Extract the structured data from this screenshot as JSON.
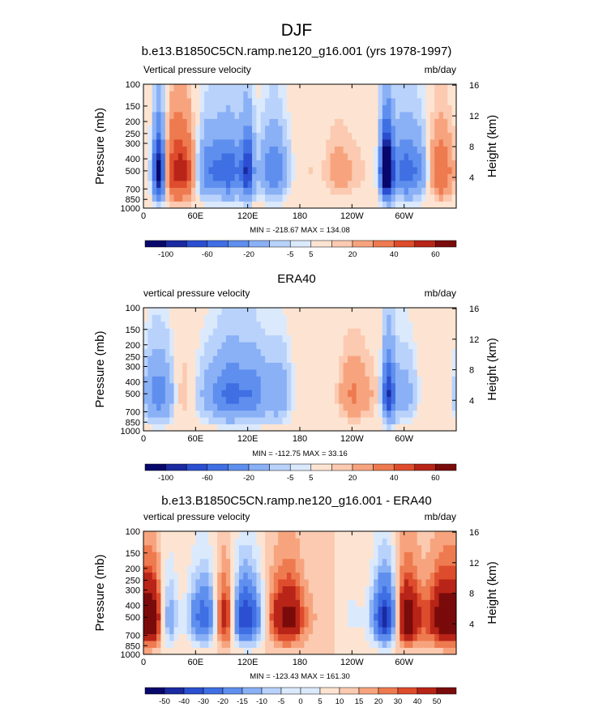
{
  "figure": {
    "season": "DJF",
    "colors": [
      "#08076b",
      "#1a2aa0",
      "#2b4fd0",
      "#3f6fe3",
      "#5f8fee",
      "#8ab0f6",
      "#b8d2fb",
      "#dbe9fd",
      "#fde4d2",
      "#fbcab0",
      "#f7a47e",
      "#ee7a50",
      "#dd4c2c",
      "#b82417",
      "#7a0b0b"
    ]
  },
  "panels": [
    {
      "title": "b.e13.B1850C5CN.ramp.ne120_g16.001 (yrs 1978-1997)",
      "variable": "Vertical pressure velocity",
      "units": "mb/day",
      "ylabel": "Pressure (mb)",
      "y2label": "Height (km)",
      "pressure_ticks": [
        "100",
        "150",
        "200",
        "250",
        "300",
        "400",
        "500",
        "700",
        "850",
        "1000"
      ],
      "height_ticks": [
        "16",
        "12",
        "8",
        "4"
      ],
      "lon_ticks": [
        "0",
        "60E",
        "120E",
        "180",
        "120W",
        "60W"
      ],
      "stats": "MIN = -218.67  MAX = 134.08",
      "colorbar_labels": [
        "-100",
        "-60",
        "-20",
        "-5",
        "5",
        "20",
        "40",
        "60"
      ],
      "chart_data": {
        "type": "heatmap",
        "x_unit": "longitude (deg E)",
        "xlim": [
          0,
          360
        ],
        "y_unit": "pressure (mb)",
        "ylim": [
          1000,
          100
        ],
        "contour_levels": [
          -120,
          -100,
          -80,
          -60,
          -40,
          -20,
          -10,
          -5,
          5,
          10,
          20,
          40,
          60,
          80
        ],
        "min": -218.67,
        "max": 134.08,
        "features": [
          {
            "lon": 18,
            "amp": -150
          },
          {
            "lon": 30,
            "amp": 25
          },
          {
            "lon": 45,
            "amp": 60
          },
          {
            "lon": 75,
            "amp": -55
          },
          {
            "lon": 100,
            "amp": -70
          },
          {
            "lon": 120,
            "amp": -95
          },
          {
            "lon": 150,
            "amp": -60
          },
          {
            "lon": 190,
            "amp": 5
          },
          {
            "lon": 225,
            "amp": 15
          },
          {
            "lon": 250,
            "amp": 5
          },
          {
            "lon": 280,
            "amp": -180
          },
          {
            "lon": 300,
            "amp": -60
          },
          {
            "lon": 318,
            "amp": -35
          },
          {
            "lon": 340,
            "amp": 40
          }
        ]
      }
    },
    {
      "title": "ERA40",
      "variable": "vertical pressure velocity",
      "units": "mb/day",
      "ylabel": "Pressure (mb)",
      "y2label": "Height (km)",
      "pressure_ticks": [
        "100",
        "150",
        "200",
        "250",
        "300",
        "400",
        "500",
        "700",
        "850",
        "1000"
      ],
      "height_ticks": [
        "16",
        "12",
        "8",
        "4"
      ],
      "lon_ticks": [
        "0",
        "60E",
        "120E",
        "180",
        "120W",
        "60W"
      ],
      "stats": "MIN = -112.75  MAX =  33.16",
      "colorbar_labels": [
        "-100",
        "-60",
        "-20",
        "-5",
        "5",
        "20",
        "40",
        "60"
      ],
      "chart_data": {
        "type": "heatmap",
        "x_unit": "longitude (deg E)",
        "xlim": [
          0,
          360
        ],
        "y_unit": "pressure (mb)",
        "ylim": [
          1000,
          100
        ],
        "contour_levels": [
          -120,
          -100,
          -80,
          -60,
          -40,
          -20,
          -10,
          -5,
          5,
          10,
          20,
          40,
          60,
          80
        ],
        "min": -112.75,
        "max": 33.16,
        "features": [
          {
            "lon": 15,
            "amp": -45
          },
          {
            "lon": 30,
            "amp": -20
          },
          {
            "lon": 45,
            "amp": 22
          },
          {
            "lon": 60,
            "amp": -12
          },
          {
            "lon": 80,
            "amp": -25
          },
          {
            "lon": 100,
            "amp": -60
          },
          {
            "lon": 125,
            "amp": -55
          },
          {
            "lon": 155,
            "amp": -35
          },
          {
            "lon": 185,
            "amp": 3
          },
          {
            "lon": 240,
            "amp": 20
          },
          {
            "lon": 262,
            "amp": 8
          },
          {
            "lon": 282,
            "amp": -95
          },
          {
            "lon": 300,
            "amp": -30
          },
          {
            "lon": 330,
            "amp": 5
          }
        ]
      }
    },
    {
      "title": "b.e13.B1850C5CN.ramp.ne120_g16.001 - ERA40",
      "variable": "vertical pressure velocity",
      "units": "mb/day",
      "ylabel": "Pressure (mb)",
      "y2label": "Height (km)",
      "pressure_ticks": [
        "100",
        "150",
        "200",
        "250",
        "300",
        "400",
        "500",
        "700",
        "850",
        "1000"
      ],
      "height_ticks": [
        "16",
        "12",
        "8",
        "4"
      ],
      "lon_ticks": [
        "0",
        "60E",
        "120E",
        "180",
        "120W",
        "60W"
      ],
      "stats": "MIN = -123.43  MAX = 161.30",
      "colorbar_labels": [
        "-50",
        "-40",
        "-30",
        "-20",
        "-15",
        "-10",
        "-5",
        "0",
        "5",
        "10",
        "15",
        "20",
        "30",
        "40",
        "50"
      ],
      "chart_data": {
        "type": "heatmap",
        "x_unit": "longitude (deg E)",
        "xlim": [
          0,
          360
        ],
        "y_unit": "pressure (mb)",
        "ylim": [
          1000,
          100
        ],
        "contour_levels": [
          -60,
          -50,
          -40,
          -30,
          -20,
          -15,
          -10,
          -5,
          0,
          5,
          10,
          15,
          20,
          30,
          40,
          50
        ],
        "min": -123.43,
        "max": 161.3,
        "features": [
          {
            "lon": 12,
            "amp": 55
          },
          {
            "lon": 28,
            "amp": -50
          },
          {
            "lon": 40,
            "amp": 25
          },
          {
            "lon": 55,
            "amp": -20
          },
          {
            "lon": 75,
            "amp": -35
          },
          {
            "lon": 95,
            "amp": 45
          },
          {
            "lon": 112,
            "amp": -50
          },
          {
            "lon": 130,
            "amp": -20
          },
          {
            "lon": 150,
            "amp": 18
          },
          {
            "lon": 170,
            "amp": 30
          },
          {
            "lon": 200,
            "amp": 4
          },
          {
            "lon": 240,
            "amp": -6
          },
          {
            "lon": 280,
            "amp": -60
          },
          {
            "lon": 300,
            "amp": 45
          },
          {
            "lon": 320,
            "amp": 8
          },
          {
            "lon": 345,
            "amp": 40
          }
        ]
      }
    }
  ]
}
